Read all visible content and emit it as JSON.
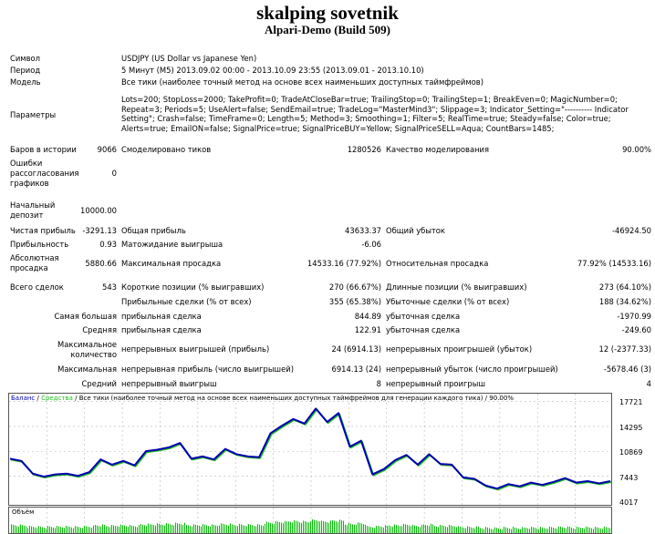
{
  "header": {
    "title": "skalping sovetnik",
    "subtitle": "Alpari-Demo (Build 509)"
  },
  "info": {
    "symbol_label": "Символ",
    "symbol_value": "USDJPY (US Dollar vs Japanese Yen)",
    "period_label": "Период",
    "period_value": "5 Минут (M5) 2013.09.02 00:00 - 2013.10.09 23:55 (2013.09.01 - 2013.10.10)",
    "model_label": "Модель",
    "model_value": "Все тики (наиболее точный метод на основе всех наименьших доступных таймфреймов)",
    "params_label": "Параметры",
    "params_lines": [
      "Lots=200; StopLoss=2000; TakeProfit=0; TradeAtCloseBar=true; TrailingStop=0; TrailingStep=1; BreakEven=0; MagicNumber=0;",
      "Repeat=3; Periods=5; UseAlert=false; SendEmail=true; TradeLog=\"MasterMind3\"; Slippage=3; Indicator_Setting=\"---------- Indicator",
      "Setting\"; Crash=false; TimeFrame=0; Length=5; Method=3; Smoothing=1; Filter=5; RealTime=true; Steady=false; Color=true;",
      "Alerts=true; EmailON=false; SignalPrice=true; SignalPriceBUY=Yellow; SignalPriceSELL=Aqua; CountBars=1485;"
    ]
  },
  "stats": {
    "bars_label": "Баров в истории",
    "bars_value": "9066",
    "ticks_label": "Смоделировано тиков",
    "ticks_value": "1280526",
    "quality_label": "Качество моделирования",
    "quality_value": "90.00%",
    "errors_label_1": "Ошибки",
    "errors_label_2": "рассогласования",
    "errors_label_3": "графиков",
    "errors_value": "0",
    "deposit_label_1": "Начальный",
    "deposit_label_2": "депозит",
    "deposit_value": "10000.00",
    "net_profit_label": "Чистая прибыль",
    "net_profit_value": "-3291.13",
    "gross_profit_label": "Общая прибыль",
    "gross_profit_value": "43633.37",
    "gross_loss_label": "Общий убыток",
    "gross_loss_value": "-46924.50",
    "profit_factor_label": "Прибыльность",
    "profit_factor_value": "0.93",
    "expected_payoff_label": "Матожидание выигрыша",
    "expected_payoff_value": "-6.06",
    "abs_dd_label_1": "Абсолютная",
    "abs_dd_label_2": "просадка",
    "abs_dd_value": "5880.66",
    "max_dd_label": "Максимальная просадка",
    "max_dd_value": "14533.16 (77.92%)",
    "rel_dd_label": "Относительная просадка",
    "rel_dd_value": "77.92% (14533.16)",
    "total_trades_label": "Всего сделок",
    "total_trades_value": "543",
    "short_label": "Короткие позиции (% выигравших)",
    "short_value": "270 (66.67%)",
    "long_label": "Длинные позиции (% выигравших)",
    "long_value": "273 (64.10%)",
    "profit_trades_label": "Прибыльные сделки (% от всех)",
    "profit_trades_value": "355 (65.38%)",
    "loss_trades_label": "Убыточные сделки (% от всех)",
    "loss_trades_value": "188 (34.62%)",
    "largest_label": "Самая большая",
    "largest_profit_label": "прибыльная сделка",
    "largest_profit_value": "844.89",
    "largest_loss_label": "убыточная сделка",
    "largest_loss_value": "-1970.99",
    "average_label": "Средняя",
    "average_profit_label": "прибыльная сделка",
    "average_profit_value": "122.91",
    "average_loss_label": "убыточная сделка",
    "average_loss_value": "-249.60",
    "max_count_label_1": "Максимальное",
    "max_count_label_2": "количество",
    "cons_wins_label": "непрерывных выигрышей (прибыль)",
    "cons_wins_value": "24 (6914.13)",
    "cons_losses_label": "непрерывных проигрышей (убыток)",
    "cons_losses_value": "12 (-2377.33)",
    "maximal_label": "Максимальная",
    "cons_profit_label": "непрерывная прибыль (число выигрышей)",
    "cons_profit_value": "6914.13 (24)",
    "cons_loss_label": "непрерывный убыток (число проигрышей)",
    "cons_loss_value": "-5678.46 (3)",
    "avg_label": "Средний",
    "avg_cons_wins_label": "непрерывный выигрыш",
    "avg_cons_wins_value": "8",
    "avg_cons_losses_label": "непрерывный проигрыш",
    "avg_cons_losses_value": "4"
  },
  "chart": {
    "legend_balance": "Баланс",
    "legend_sep1": " / ",
    "legend_equity": "Средства",
    "legend_rest": " / Все тики (наиболее точный метод на основе всех наименьших доступных таймфреймов для генерации каждого тика) / 90.00%",
    "volume_label": "Объём",
    "colors": {
      "balance": "#0000b0",
      "equity": "#22bb22",
      "volume": "#00bb00",
      "grid": "#b8b8b8"
    },
    "y_ticks": [
      "17721",
      "14295",
      "10869",
      "7443",
      "4017"
    ]
  },
  "chart_data": {
    "type": "line",
    "title": "Баланс / Средства",
    "ylabel": "",
    "xlabel": "",
    "ylim": [
      4017,
      17721
    ],
    "y_ticks": [
      17721,
      14295,
      10869,
      7443,
      4017
    ],
    "series": [
      {
        "name": "Баланс",
        "values": [
          10000,
          9700,
          8000,
          7600,
          7900,
          8000,
          7700,
          8200,
          9900,
          9200,
          9700,
          9100,
          11000,
          11200,
          11500,
          12100,
          10000,
          10300,
          9900,
          11300,
          10600,
          10300,
          10200,
          13400,
          14400,
          15300,
          14700,
          16700,
          14900,
          16100,
          11600,
          12400,
          7900,
          8600,
          9800,
          10500,
          9200,
          10600,
          9300,
          9200,
          7500,
          7300,
          6400,
          6000,
          6600,
          6300,
          6800,
          6500,
          6900,
          7400,
          6800,
          7000,
          6700,
          7000
        ]
      },
      {
        "name": "Средства",
        "values": [
          10000,
          9700,
          8000,
          7600,
          7900,
          8000,
          7700,
          8200,
          9900,
          9200,
          9700,
          9100,
          11000,
          11200,
          11500,
          12100,
          10000,
          10300,
          9900,
          11300,
          10600,
          10300,
          10200,
          13400,
          14400,
          15300,
          14700,
          16700,
          14900,
          16100,
          11600,
          12400,
          7900,
          8600,
          9800,
          10500,
          9200,
          10600,
          9300,
          9200,
          7500,
          7300,
          6400,
          6000,
          6600,
          6300,
          6800,
          6500,
          6900,
          7400,
          6800,
          7000,
          6700,
          7000
        ]
      }
    ],
    "grid": true,
    "legend_position": "top-left"
  }
}
